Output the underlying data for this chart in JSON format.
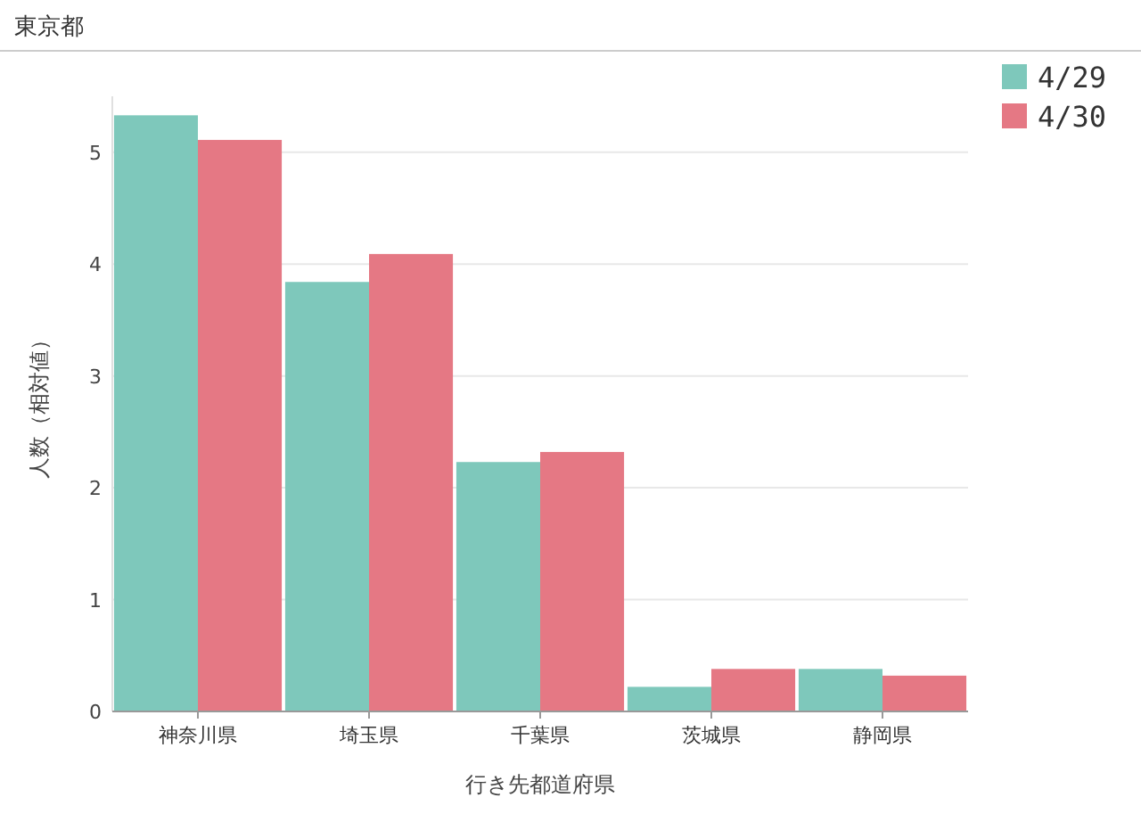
{
  "chart_data": {
    "type": "bar",
    "title": "東京都",
    "xlabel": "行き先都道府県",
    "ylabel": "人数（相対値）",
    "categories": [
      "神奈川県",
      "埼玉県",
      "千葉県",
      "茨城県",
      "静岡県"
    ],
    "series": [
      {
        "name": "4/29",
        "color": "#7ec8bb",
        "values": [
          5.33,
          3.84,
          2.23,
          0.22,
          0.38
        ]
      },
      {
        "name": "4/30",
        "color": "#e57884",
        "values": [
          5.11,
          4.09,
          2.32,
          0.38,
          0.32
        ]
      }
    ],
    "ylim": [
      0,
      5.5
    ],
    "yticks": [
      0,
      1,
      2,
      3,
      4,
      5
    ],
    "grid": "y",
    "legend": "top right"
  }
}
